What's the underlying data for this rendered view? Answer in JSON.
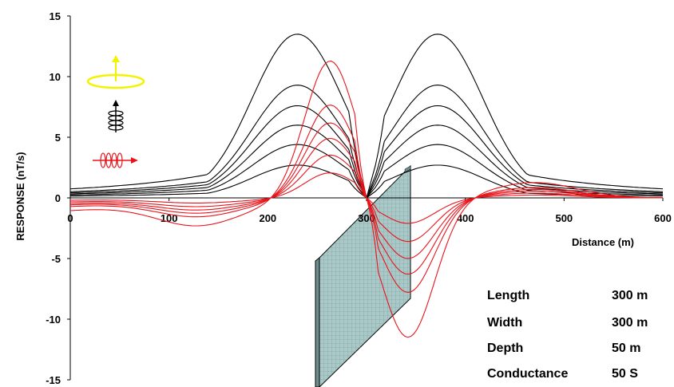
{
  "chart_data": {
    "type": "line",
    "xlabel": "Distance (m)",
    "ylabel": "RESPONSE (nT/s)",
    "xlim": [
      0,
      600
    ],
    "ylim": [
      -15,
      15
    ],
    "x_ticks": [
      0,
      100,
      200,
      300,
      400,
      500,
      600
    ],
    "y_ticks": [
      15,
      10,
      5,
      0,
      -5,
      -10,
      -15
    ],
    "grid": false,
    "legend": "none",
    "colors": {
      "vertical_component": "#000000",
      "horizontal_component": "#e8141b",
      "transmitter_loop": "#f3f300",
      "plate_fill": "#a9c8c8"
    },
    "vertical_series": [
      {
        "peak": 13.5
      },
      {
        "peak": 9.3
      },
      {
        "peak": 7.6
      },
      {
        "peak": 6.0
      },
      {
        "peak": 4.4
      },
      {
        "peak": 2.7
      }
    ],
    "horizontal_series": [
      {
        "peak": 11.5
      },
      {
        "peak": 7.8
      },
      {
        "peak": 6.3
      },
      {
        "peak": 5.0
      },
      {
        "peak": 3.6
      },
      {
        "peak": 2.1
      }
    ],
    "parameters": [
      {
        "label": "Length",
        "value": "300 m"
      },
      {
        "label": "Width",
        "value": "300 m"
      },
      {
        "label": "Depth",
        "value": "50 m"
      },
      {
        "label": "Conductance",
        "value": "50 S"
      }
    ],
    "icons": [
      "transmitter-loop-icon",
      "vertical-receiver-coil-icon",
      "horizontal-receiver-coil-icon"
    ]
  }
}
